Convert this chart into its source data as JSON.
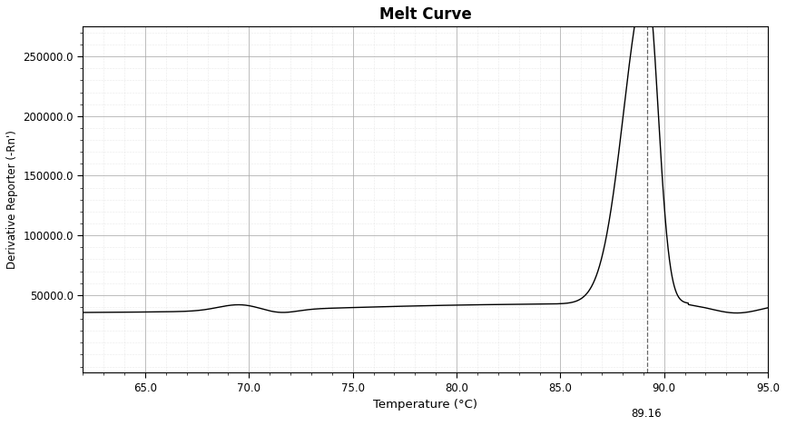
{
  "title": "Melt Curve",
  "xlabel": "Temperature (°C)",
  "ylabel": "Derivative Reporter (-Rn')",
  "xmin": 62.0,
  "xmax": 95.0,
  "ymin": -15000,
  "ymax": 275000,
  "yticks": [
    50000,
    100000,
    150000,
    200000,
    250000
  ],
  "ytick_labels": [
    "50000.0",
    "100000.0",
    "150000.0",
    "200000.0",
    "250000.0"
  ],
  "xticks": [
    65.0,
    70.0,
    75.0,
    80.0,
    85.0,
    90.0,
    95.0
  ],
  "peak_temp": 89.16,
  "peak_value": 268000,
  "line_color": "#000000",
  "background_color": "#ffffff",
  "grid_major_color": "#aaaaaa",
  "grid_minor_color": "#cccccc",
  "vline_color": "#666666",
  "annotation_label": "89.16"
}
